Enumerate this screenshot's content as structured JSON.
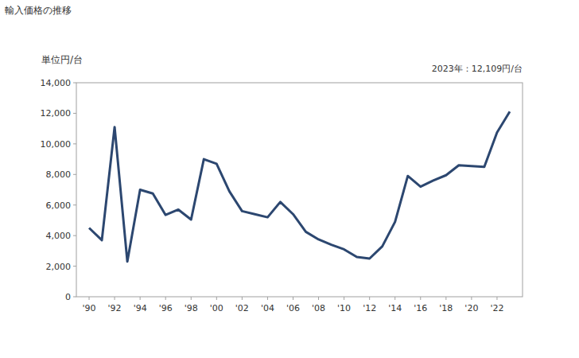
{
  "chart_data": {
    "type": "line",
    "title": "輸入価格の推移",
    "y_label": "単位円/台",
    "annotation": "2023年：12,109円/台",
    "x": [
      1990,
      1991,
      1992,
      1993,
      1994,
      1995,
      1996,
      1997,
      1998,
      1999,
      2000,
      2001,
      2002,
      2003,
      2004,
      2005,
      2006,
      2007,
      2008,
      2009,
      2010,
      2011,
      2012,
      2013,
      2014,
      2015,
      2016,
      2017,
      2018,
      2019,
      2020,
      2021,
      2022,
      2023
    ],
    "values": [
      4500,
      3700,
      11100,
      2300,
      7000,
      6750,
      5350,
      5700,
      5050,
      9000,
      8700,
      6900,
      5600,
      5400,
      5200,
      6200,
      5400,
      4250,
      3750,
      3400,
      3100,
      2600,
      2500,
      3300,
      4900,
      7900,
      7200,
      7600,
      7950,
      8600,
      8550,
      8500,
      10750,
      12109
    ],
    "color": "#2c4770",
    "xlim": [
      1989,
      2024
    ],
    "xticks": [
      {
        "value": 1990,
        "label": "'90"
      },
      {
        "value": 1992,
        "label": "'92"
      },
      {
        "value": 1994,
        "label": "'94"
      },
      {
        "value": 1996,
        "label": "'96"
      },
      {
        "value": 1998,
        "label": "'98"
      },
      {
        "value": 2000,
        "label": "'00"
      },
      {
        "value": 2002,
        "label": "'02"
      },
      {
        "value": 2004,
        "label": "'04"
      },
      {
        "value": 2006,
        "label": "'06"
      },
      {
        "value": 2008,
        "label": "'08"
      },
      {
        "value": 2010,
        "label": "'10"
      },
      {
        "value": 2012,
        "label": "'12"
      },
      {
        "value": 2014,
        "label": "'14"
      },
      {
        "value": 2016,
        "label": "'16"
      },
      {
        "value": 2018,
        "label": "'18"
      },
      {
        "value": 2020,
        "label": "'20"
      },
      {
        "value": 2022,
        "label": "'22"
      }
    ],
    "ylim": [
      0,
      14000
    ],
    "yticks": [
      0,
      {
        "value": 2000,
        "label": "2,000"
      },
      {
        "value": 4000,
        "label": "4,000"
      },
      {
        "value": 6000,
        "label": "6,000"
      },
      {
        "value": 8000,
        "label": "8,000"
      },
      {
        "value": 10000,
        "label": "10,000"
      },
      {
        "value": 12000,
        "label": "12,000"
      },
      {
        "value": 14000,
        "label": "14,000"
      }
    ],
    "grid": false
  }
}
